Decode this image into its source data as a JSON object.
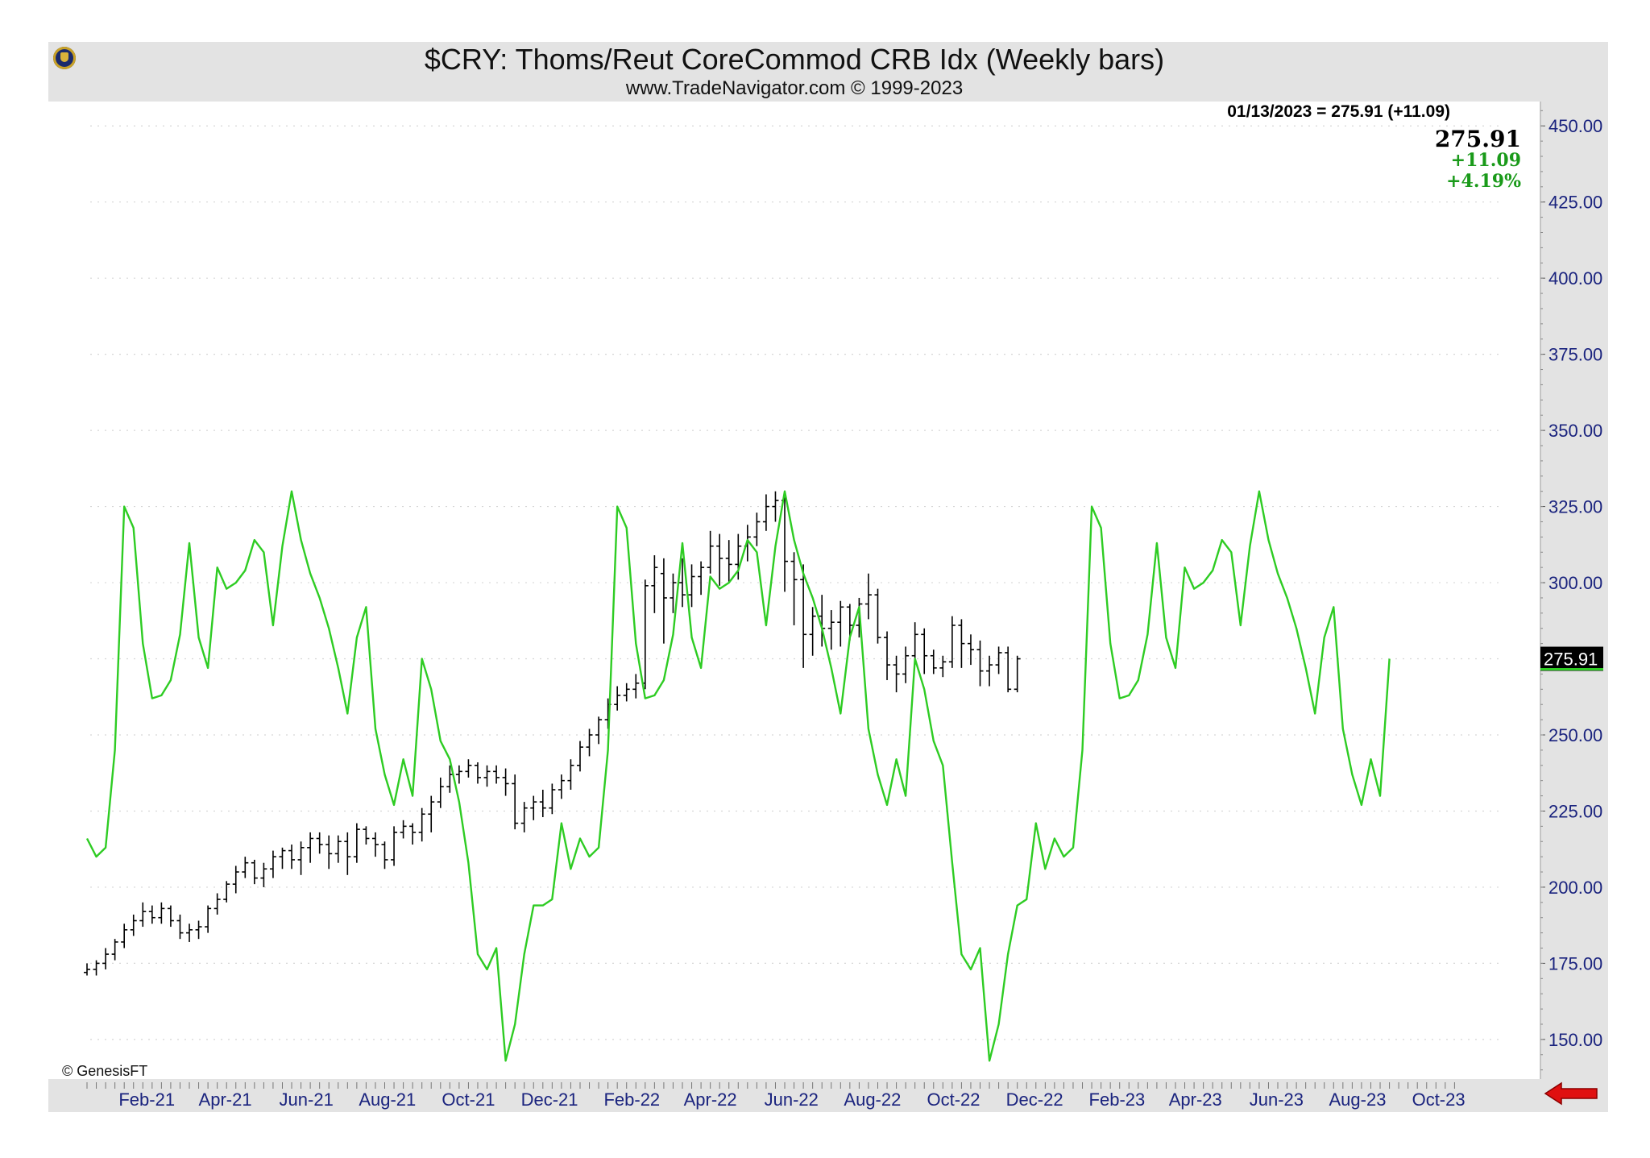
{
  "header": {
    "title": "$CRY:  Thoms/Reut CoreCommod CRB Idx  (Weekly bars)",
    "subtitle": "www.TradeNavigator.com © 1999-2023",
    "headline": "01/13/2023 = 275.91 (+11.09)",
    "last_price": "275.91",
    "change": "+11.09",
    "change_pct": "+4.19%",
    "price_tag": "275.91",
    "copyright": "© GenesisFT"
  },
  "colors": {
    "frame": "#e3e3e3",
    "plot_bg": "#ffffff",
    "axis_text": "#1a237e",
    "seasonal_line": "#2ecc23",
    "bars": "#000000",
    "grid": "#d6d6d6",
    "arrow": "#e01010",
    "up_text": "#1a9a1a"
  },
  "icons": {
    "logo": "trade-navigator-logo",
    "nav": "red-left-arrow-icon"
  },
  "chart_data": {
    "type": "ohlc-with-line",
    "title": "$CRY:  Thoms/Reut CoreCommod CRB Idx  (Weekly bars)",
    "ylim": [
      137,
      458
    ],
    "y_ticks": [
      150,
      175,
      200,
      225,
      250,
      275,
      300,
      325,
      350,
      375,
      400,
      425,
      450
    ],
    "y_tick_labels": [
      "150.00",
      "175.00",
      "200.00",
      "225.00",
      "250.00",
      "275.00",
      "300.00",
      "325.00",
      "350.00",
      "375.00",
      "400.00",
      "425.00",
      "450.00"
    ],
    "x_tick_labels": [
      "Feb-21",
      "Apr-21",
      "Jun-21",
      "Aug-21",
      "Oct-21",
      "Dec-21",
      "Feb-22",
      "Apr-22",
      "Jun-22",
      "Aug-22",
      "Oct-22",
      "Dec-22",
      "Feb-23",
      "Apr-23",
      "Jun-23",
      "Aug-23",
      "Oct-23"
    ],
    "x_range": [
      "2021-01-01",
      "2023-10-31"
    ],
    "grid": "horizontal-dotted",
    "series": [
      {
        "type": "ohlc",
        "start_date": "2021-01-01",
        "interval_days": 7,
        "data": [
          [
            172,
            175,
            171,
            173
          ],
          [
            173,
            176,
            171,
            175
          ],
          [
            175,
            180,
            173,
            178
          ],
          [
            178,
            183,
            176,
            182
          ],
          [
            182,
            188,
            180,
            186
          ],
          [
            186,
            191,
            184,
            189
          ],
          [
            189,
            195,
            187,
            192
          ],
          [
            192,
            194,
            188,
            190
          ],
          [
            190,
            195,
            188,
            193
          ],
          [
            193,
            194,
            187,
            189
          ],
          [
            189,
            191,
            183,
            185
          ],
          [
            185,
            188,
            182,
            186
          ],
          [
            186,
            189,
            183,
            187
          ],
          [
            187,
            194,
            185,
            193
          ],
          [
            193,
            198,
            191,
            196
          ],
          [
            196,
            202,
            195,
            201
          ],
          [
            201,
            207,
            198,
            205
          ],
          [
            205,
            210,
            203,
            208
          ],
          [
            208,
            209,
            201,
            203
          ],
          [
            203,
            208,
            200,
            206
          ],
          [
            206,
            212,
            203,
            210
          ],
          [
            210,
            213,
            206,
            212
          ],
          [
            212,
            214,
            206,
            209
          ],
          [
            209,
            215,
            204,
            213
          ],
          [
            213,
            218,
            208,
            216
          ],
          [
            216,
            218,
            211,
            214
          ],
          [
            214,
            217,
            206,
            211
          ],
          [
            211,
            217,
            208,
            215
          ],
          [
            215,
            218,
            204,
            210
          ],
          [
            210,
            221,
            208,
            219
          ],
          [
            219,
            220,
            214,
            216
          ],
          [
            216,
            218,
            210,
            214
          ],
          [
            214,
            215,
            206,
            209
          ],
          [
            209,
            220,
            207,
            218
          ],
          [
            218,
            222,
            216,
            220
          ],
          [
            220,
            221,
            214,
            218
          ],
          [
            218,
            226,
            215,
            224
          ],
          [
            224,
            230,
            218,
            228
          ],
          [
            228,
            236,
            226,
            233
          ],
          [
            233,
            240,
            231,
            237
          ],
          [
            237,
            240,
            234,
            238
          ],
          [
            238,
            242,
            236,
            240
          ],
          [
            240,
            241,
            234,
            236
          ],
          [
            236,
            240,
            233,
            238
          ],
          [
            238,
            240,
            234,
            236
          ],
          [
            236,
            239,
            230,
            234
          ],
          [
            234,
            237,
            219,
            221
          ],
          [
            221,
            228,
            218,
            226
          ],
          [
            226,
            230,
            222,
            228
          ],
          [
            228,
            232,
            223,
            226
          ],
          [
            226,
            234,
            224,
            232
          ],
          [
            232,
            237,
            229,
            235
          ],
          [
            235,
            242,
            232,
            240
          ],
          [
            240,
            248,
            238,
            246
          ],
          [
            246,
            252,
            243,
            250
          ],
          [
            250,
            256,
            247,
            255
          ],
          [
            255,
            262,
            252,
            260
          ],
          [
            260,
            266,
            258,
            263
          ],
          [
            263,
            267,
            261,
            265
          ],
          [
            265,
            270,
            262,
            267
          ],
          [
            267,
            301,
            265,
            299
          ],
          [
            299,
            309,
            290,
            305
          ],
          [
            303,
            308,
            280,
            295
          ],
          [
            295,
            303,
            290,
            300
          ],
          [
            300,
            308,
            292,
            296
          ],
          [
            296,
            306,
            292,
            302
          ],
          [
            302,
            307,
            296,
            305
          ],
          [
            305,
            317,
            303,
            312
          ],
          [
            312,
            316,
            299,
            308
          ],
          [
            308,
            314,
            300,
            306
          ],
          [
            306,
            316,
            301,
            312
          ],
          [
            312,
            319,
            307,
            315
          ],
          [
            315,
            323,
            312,
            320
          ],
          [
            320,
            329,
            317,
            325
          ],
          [
            325,
            330,
            320,
            327
          ],
          [
            327,
            328,
            297,
            307
          ],
          [
            307,
            310,
            286,
            301
          ],
          [
            301,
            306,
            272,
            283
          ],
          [
            283,
            292,
            276,
            289
          ],
          [
            289,
            296,
            279,
            285
          ],
          [
            285,
            291,
            278,
            287
          ],
          [
            287,
            294,
            279,
            292
          ],
          [
            292,
            293,
            281,
            286
          ],
          [
            286,
            295,
            282,
            293
          ],
          [
            293,
            303,
            288,
            296
          ],
          [
            296,
            298,
            280,
            282
          ],
          [
            282,
            284,
            268,
            273
          ],
          [
            273,
            276,
            264,
            270
          ],
          [
            270,
            279,
            267,
            276
          ],
          [
            276,
            287,
            274,
            283
          ],
          [
            283,
            285,
            270,
            276
          ],
          [
            276,
            278,
            270,
            272
          ],
          [
            272,
            276,
            269,
            274
          ],
          [
            274,
            289,
            272,
            286
          ],
          [
            286,
            288,
            272,
            280
          ],
          [
            280,
            283,
            273,
            278
          ],
          [
            278,
            281,
            266,
            271
          ],
          [
            271,
            276,
            266,
            273
          ],
          [
            273,
            279,
            270,
            277
          ],
          [
            277,
            279,
            264,
            265
          ],
          [
            265,
            276,
            264,
            275
          ]
        ]
      },
      {
        "type": "line",
        "start_date": "2021-01-01",
        "interval_days": 7,
        "values": [
          216,
          210,
          213,
          245,
          325,
          318,
          280,
          262,
          263,
          268,
          283,
          313,
          282,
          272,
          305,
          298,
          300,
          304,
          314,
          310,
          286,
          312,
          330,
          314,
          303,
          295,
          285,
          272,
          257,
          282,
          292,
          252,
          237,
          227,
          242,
          230,
          275,
          265,
          248,
          242,
          228,
          208,
          178,
          173,
          180,
          143,
          155,
          178,
          194,
          194,
          196,
          221,
          206,
          216,
          210,
          213,
          245,
          325,
          318,
          280,
          262,
          263,
          268,
          283,
          313,
          282,
          272,
          302,
          298,
          300,
          304,
          314,
          310,
          286,
          312,
          330,
          314,
          303,
          295,
          285,
          272,
          257,
          282,
          292,
          252,
          237,
          227,
          242,
          230,
          275,
          265,
          248,
          240,
          208,
          178,
          173,
          180,
          143,
          155,
          178,
          194,
          196,
          221,
          206,
          216,
          210,
          213,
          245,
          325,
          318,
          280,
          262,
          263,
          268,
          283,
          313,
          282,
          272,
          305,
          298,
          300,
          304,
          314,
          310,
          286,
          312,
          330,
          314,
          303,
          295,
          285,
          272,
          257,
          282,
          292,
          252,
          237,
          227,
          242,
          230,
          275
        ]
      }
    ]
  }
}
